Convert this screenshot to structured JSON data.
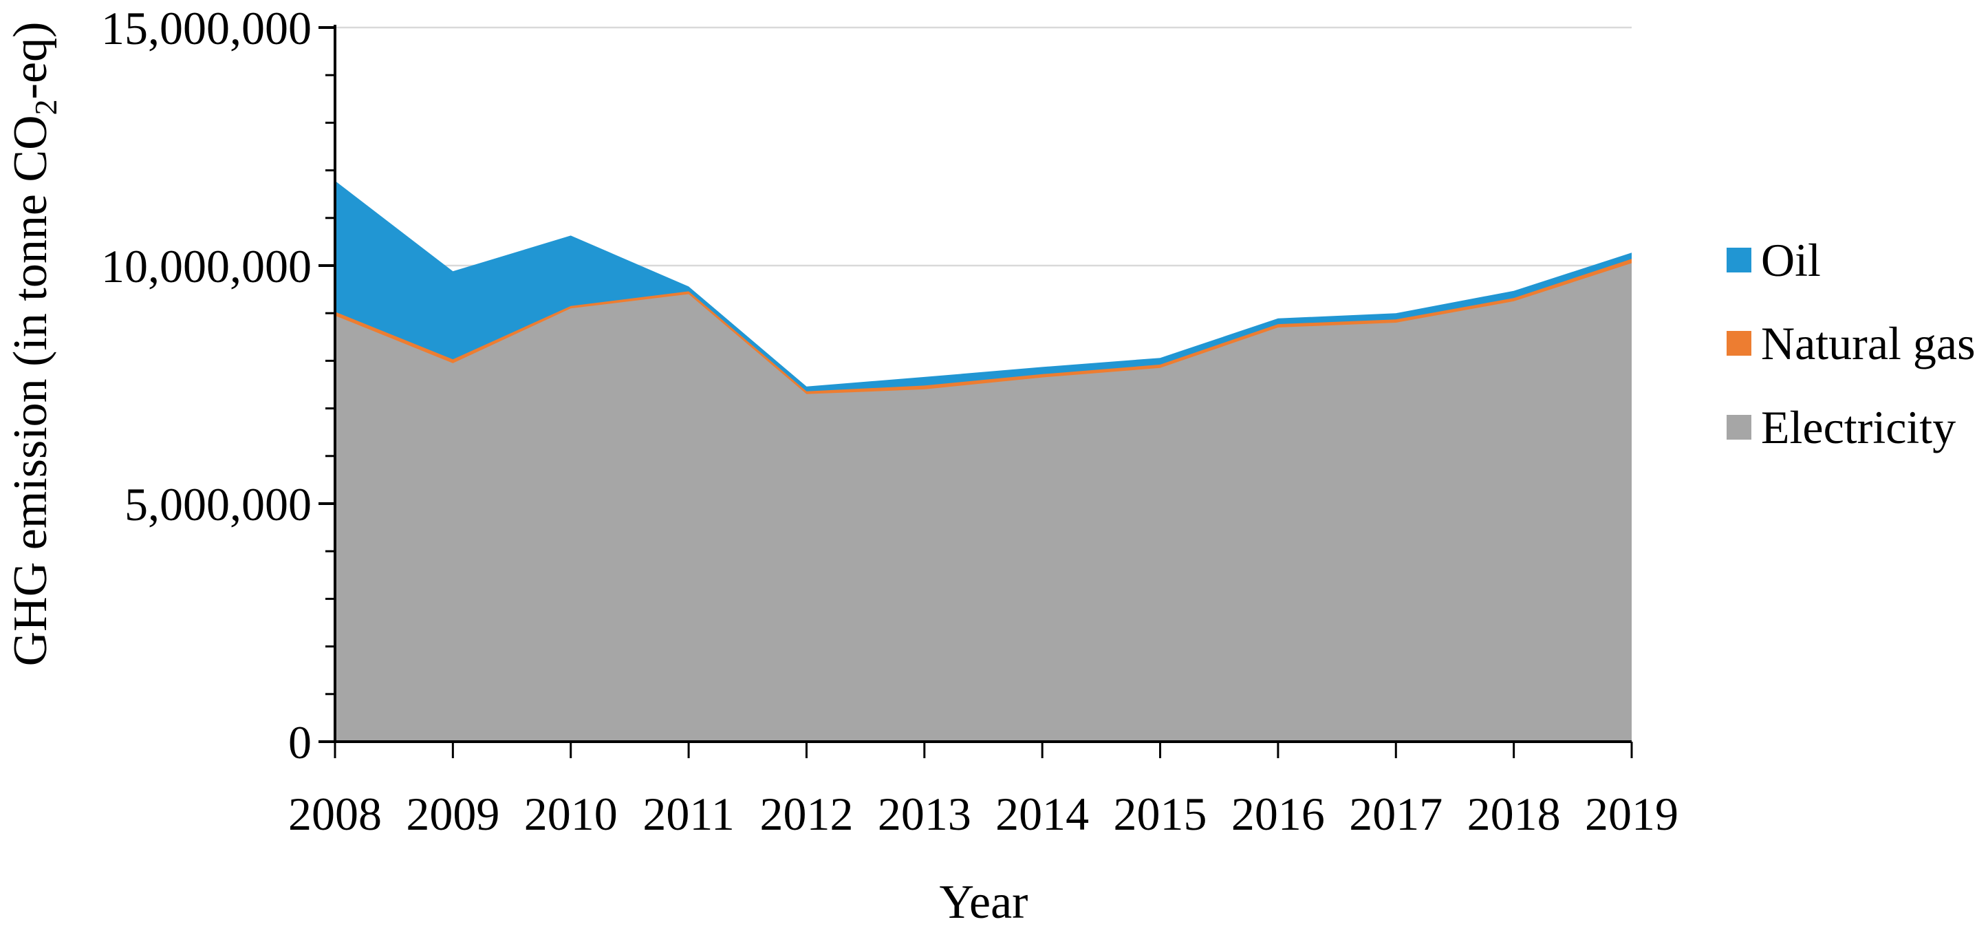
{
  "page": {
    "background": "#FFFFFF"
  },
  "chart_data": {
    "type": "area",
    "stacked": true,
    "title": "",
    "xlabel": "Year",
    "ylabel": "GHG emission (in tonne CO2-eq)",
    "ylabel_parts": {
      "prefix": "GHG emission (in tonne CO",
      "subscript": "2",
      "suffix": "-eq)"
    },
    "categories": [
      "2008",
      "2009",
      "2010",
      "2011",
      "2012",
      "2013",
      "2014",
      "2015",
      "2016",
      "2017",
      "2018",
      "2019"
    ],
    "series": [
      {
        "name": "Electricity",
        "color": "#A6A6A6",
        "values": [
          8950000,
          7950000,
          9100000,
          9400000,
          7300000,
          7400000,
          7650000,
          7850000,
          8700000,
          8800000,
          9250000,
          10050000
        ]
      },
      {
        "name": "Natural gas",
        "color": "#ED7D31",
        "values": [
          80000,
          80000,
          50000,
          60000,
          60000,
          80000,
          70000,
          70000,
          70000,
          70000,
          70000,
          90000
        ]
      },
      {
        "name": "Oil",
        "color": "#2196D3",
        "values": [
          2750000,
          1850000,
          1480000,
          100000,
          100000,
          180000,
          150000,
          140000,
          120000,
          130000,
          150000,
          130000
        ]
      }
    ],
    "stack_order_bottom_to_top": [
      "Electricity",
      "Natural gas",
      "Oil"
    ],
    "legend": {
      "position": "right",
      "items": [
        "Oil",
        "Natural gas",
        "Electricity"
      ]
    },
    "y_axis": {
      "min": 0,
      "max": 15000000,
      "major_tick_interval": 5000000,
      "minor_tick_interval": 1000000,
      "tick_labels": [
        "0",
        "5,000,000",
        "10,000,000",
        "15,000,000"
      ]
    },
    "x_axis": {
      "tick_labels": [
        "2008",
        "2009",
        "2010",
        "2011",
        "2012",
        "2013",
        "2014",
        "2015",
        "2016",
        "2017",
        "2018",
        "2019"
      ]
    },
    "grid": {
      "horizontal": true,
      "color": "#D9D9D9"
    },
    "axis_color": "#000000"
  }
}
